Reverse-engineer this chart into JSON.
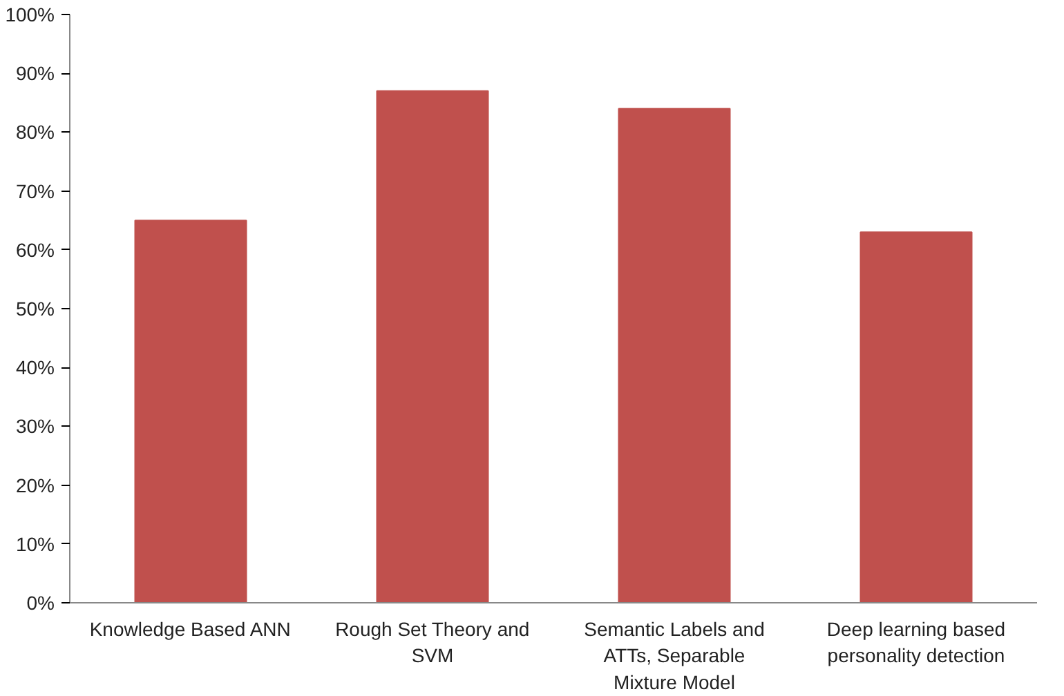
{
  "chart_data": {
    "type": "bar",
    "categories": [
      "Knowledge Based ANN",
      "Rough Set Theory and SVM",
      "Semantic Labels and ATTs, Separable Mixture Model",
      "Deep learning based personality detection"
    ],
    "values": [
      65,
      87,
      84,
      63
    ],
    "color": "#c0504d",
    "ylim": [
      0,
      100
    ],
    "yticks": [
      {
        "value": 0,
        "label": "0%"
      },
      {
        "value": 10,
        "label": "10%"
      },
      {
        "value": 20,
        "label": "20%"
      },
      {
        "value": 30,
        "label": "30%"
      },
      {
        "value": 40,
        "label": "40%"
      },
      {
        "value": 50,
        "label": "50%"
      },
      {
        "value": 60,
        "label": "60%"
      },
      {
        "value": 70,
        "label": "70%"
      },
      {
        "value": 80,
        "label": "80%"
      },
      {
        "value": 90,
        "label": "90%"
      },
      {
        "value": 100,
        "label": "100%"
      }
    ],
    "grid": false
  }
}
